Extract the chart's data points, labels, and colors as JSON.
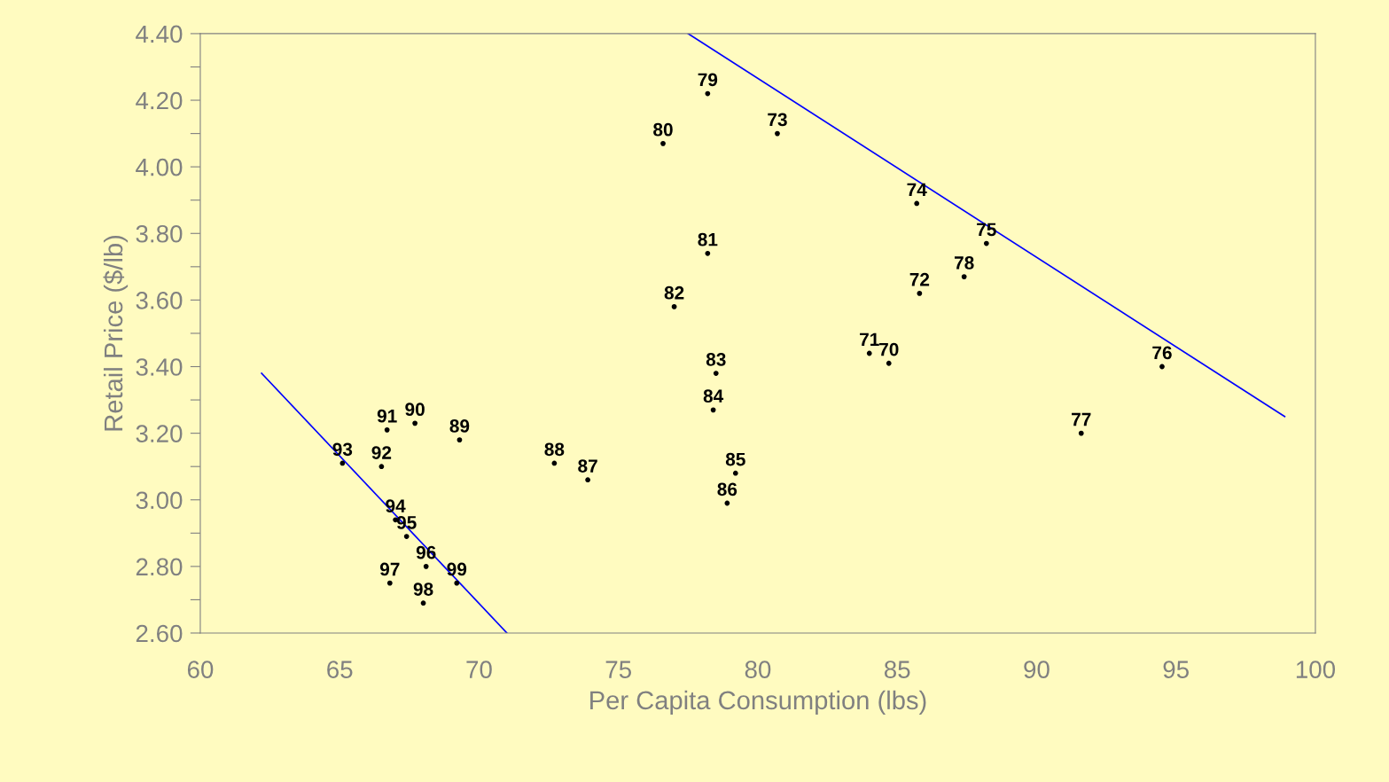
{
  "chart_data": {
    "type": "scatter",
    "xlabel": "Per Capita Consumption (lbs)",
    "ylabel": "Retail Price ($/lb)",
    "xlim": [
      60,
      100
    ],
    "xticks": [
      60,
      65,
      70,
      75,
      80,
      85,
      90,
      95,
      100
    ],
    "ylim": [
      2.6,
      4.4
    ],
    "yticks": [
      {
        "value": 2.6,
        "label": "2.60"
      },
      {
        "value": 2.7,
        "label": null
      },
      {
        "value": 2.8,
        "label": "2.80"
      },
      {
        "value": 2.9,
        "label": null
      },
      {
        "value": 3.0,
        "label": "3.00"
      },
      {
        "value": 3.1,
        "label": null
      },
      {
        "value": 3.2,
        "label": "3.20"
      },
      {
        "value": 3.3,
        "label": null
      },
      {
        "value": 3.4,
        "label": "3.40"
      },
      {
        "value": 3.5,
        "label": null
      },
      {
        "value": 3.6,
        "label": "3.60"
      },
      {
        "value": 3.7,
        "label": null
      },
      {
        "value": 3.8,
        "label": "3.80"
      },
      {
        "value": 3.9,
        "label": null
      },
      {
        "value": 4.0,
        "label": "4.00"
      },
      {
        "value": 4.1,
        "label": null
      },
      {
        "value": 4.2,
        "label": "4.20"
      },
      {
        "value": 4.3,
        "label": null
      },
      {
        "value": 4.4,
        "label": "4.40"
      }
    ],
    "grid": false,
    "legend": false,
    "marker": "circle",
    "series": [
      {
        "color": "#000000",
        "x": [
          78.2,
          76.6,
          80.7,
          85.7,
          88.2,
          78.2,
          85.8,
          87.4,
          77.0,
          84.0,
          84.7,
          94.5,
          78.5,
          78.4,
          91.6,
          66.7,
          67.7,
          69.3,
          65.1,
          66.5,
          72.7,
          73.9,
          79.2,
          78.9,
          67.0,
          67.4,
          68.1,
          69.2,
          66.8,
          68.0
        ],
        "values": [
          4.22,
          4.07,
          4.1,
          3.89,
          3.77,
          3.74,
          3.62,
          3.67,
          3.58,
          3.44,
          3.41,
          3.4,
          3.38,
          3.27,
          3.2,
          3.21,
          3.23,
          3.18,
          3.11,
          3.1,
          3.11,
          3.06,
          3.08,
          2.99,
          2.94,
          2.89,
          2.8,
          2.75,
          2.75,
          2.69
        ]
      },
      {
        "type": "line",
        "marker": "none",
        "color": "#0000ff",
        "x": [
          77.5,
          98.9
        ],
        "values": [
          4.4,
          3.25
        ]
      },
      {
        "type": "line",
        "marker": "none",
        "color": "#0000ff",
        "x": [
          62.2,
          71.0
        ],
        "values": [
          3.38,
          2.6
        ]
      }
    ],
    "annotations": [
      {
        "text": "79",
        "x": 78.2,
        "y": 4.22
      },
      {
        "text": "80",
        "x": 76.6,
        "y": 4.07
      },
      {
        "text": "73",
        "x": 80.7,
        "y": 4.1
      },
      {
        "text": "74",
        "x": 85.7,
        "y": 3.89
      },
      {
        "text": "75",
        "x": 88.2,
        "y": 3.77
      },
      {
        "text": "81",
        "x": 78.2,
        "y": 3.74
      },
      {
        "text": "72",
        "x": 85.8,
        "y": 3.62
      },
      {
        "text": "78",
        "x": 87.4,
        "y": 3.67
      },
      {
        "text": "82",
        "x": 77.0,
        "y": 3.58
      },
      {
        "text": "71",
        "x": 84.0,
        "y": 3.44
      },
      {
        "text": "70",
        "x": 84.7,
        "y": 3.41
      },
      {
        "text": "76",
        "x": 94.5,
        "y": 3.4
      },
      {
        "text": "83",
        "x": 78.5,
        "y": 3.38
      },
      {
        "text": "84",
        "x": 78.4,
        "y": 3.27
      },
      {
        "text": "77",
        "x": 91.6,
        "y": 3.2
      },
      {
        "text": "91",
        "x": 66.7,
        "y": 3.21
      },
      {
        "text": "90",
        "x": 67.7,
        "y": 3.23
      },
      {
        "text": "89",
        "x": 69.3,
        "y": 3.18
      },
      {
        "text": "93",
        "x": 65.1,
        "y": 3.11
      },
      {
        "text": "92",
        "x": 66.5,
        "y": 3.1
      },
      {
        "text": "88",
        "x": 72.7,
        "y": 3.11
      },
      {
        "text": "87",
        "x": 73.9,
        "y": 3.06
      },
      {
        "text": "85",
        "x": 79.2,
        "y": 3.08
      },
      {
        "text": "86",
        "x": 78.9,
        "y": 2.99
      },
      {
        "text": "94",
        "x": 67.0,
        "y": 2.94
      },
      {
        "text": "95",
        "x": 67.4,
        "y": 2.89
      },
      {
        "text": "96",
        "x": 68.1,
        "y": 2.8
      },
      {
        "text": "99",
        "x": 69.2,
        "y": 2.75
      },
      {
        "text": "97",
        "x": 66.8,
        "y": 2.75
      },
      {
        "text": "98",
        "x": 68.0,
        "y": 2.69
      }
    ]
  }
}
